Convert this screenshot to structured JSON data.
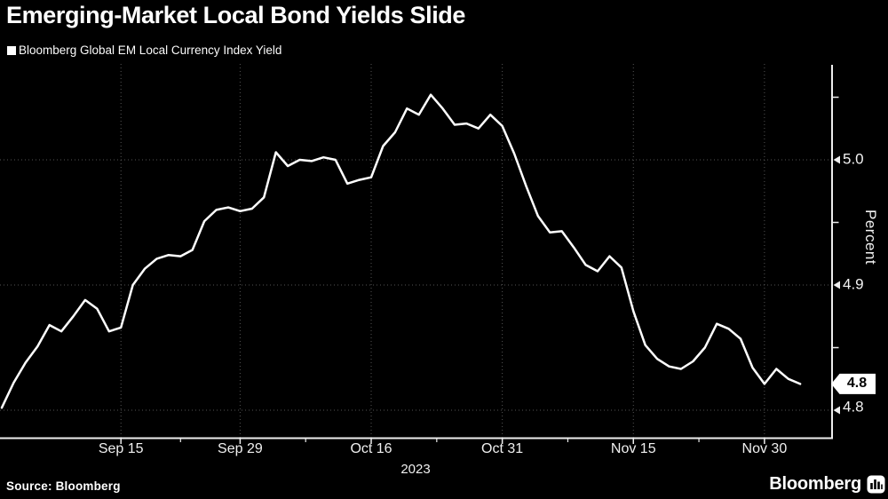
{
  "title": "Emerging-Market Local Bond Yields Slide",
  "legend": {
    "label": "Bloomberg Global EM Local Currency Index Yield",
    "swatch_color": "#ffffff"
  },
  "source": "Source: Bloomberg",
  "brand": {
    "wordmark": "Bloomberg"
  },
  "chart_data": {
    "type": "line",
    "title": "Emerging-Market Local Bond Yields Slide",
    "series": [
      {
        "name": "Bloomberg Global EM Local Currency Index Yield",
        "x": [
          "Sep 1",
          "Sep 4",
          "Sep 5",
          "Sep 6",
          "Sep 7",
          "Sep 8",
          "Sep 11",
          "Sep 12",
          "Sep 13",
          "Sep 14",
          "Sep 15",
          "Sep 18",
          "Sep 19",
          "Sep 20",
          "Sep 21",
          "Sep 22",
          "Sep 25",
          "Sep 26",
          "Sep 27",
          "Sep 28",
          "Sep 29",
          "Oct 2",
          "Oct 3",
          "Oct 4",
          "Oct 5",
          "Oct 6",
          "Oct 9",
          "Oct 10",
          "Oct 11",
          "Oct 12",
          "Oct 13",
          "Oct 16",
          "Oct 17",
          "Oct 18",
          "Oct 19",
          "Oct 20",
          "Oct 23",
          "Oct 24",
          "Oct 25",
          "Oct 26",
          "Oct 27",
          "Oct 30",
          "Oct 31",
          "Nov 1",
          "Nov 2",
          "Nov 3",
          "Nov 6",
          "Nov 7",
          "Nov 8",
          "Nov 9",
          "Nov 10",
          "Nov 13",
          "Nov 14",
          "Nov 15",
          "Nov 16",
          "Nov 17",
          "Nov 20",
          "Nov 21",
          "Nov 22",
          "Nov 23",
          "Nov 24",
          "Nov 27",
          "Nov 28",
          "Nov 29",
          "Nov 30",
          "Dec 1",
          "Dec 4",
          "Dec 5"
        ],
        "values": [
          4.802,
          4.822,
          4.838,
          4.851,
          4.868,
          4.863,
          4.875,
          4.888,
          4.881,
          4.863,
          4.866,
          4.9,
          4.913,
          4.921,
          4.924,
          4.923,
          4.928,
          4.951,
          4.96,
          4.962,
          4.959,
          4.961,
          4.97,
          5.006,
          4.995,
          5.0,
          4.999,
          5.002,
          5.0,
          4.981,
          4.984,
          4.986,
          5.011,
          5.022,
          5.041,
          5.036,
          5.052,
          5.041,
          5.028,
          5.029,
          5.025,
          5.036,
          5.027,
          5.005,
          4.979,
          4.955,
          4.942,
          4.943,
          4.93,
          4.916,
          4.911,
          4.923,
          4.914,
          4.879,
          4.852,
          4.841,
          4.835,
          4.833,
          4.839,
          4.85,
          4.869,
          4.865,
          4.857,
          4.834,
          4.821,
          4.833,
          4.825,
          4.821
        ]
      }
    ],
    "xlabel": "2023",
    "ylabel": "Percent",
    "x_tick_labels": [
      "Sep 15",
      "Sep 29",
      "Oct 16",
      "Oct 31",
      "Nov 15",
      "Nov 30"
    ],
    "x_tick_indices": [
      10,
      20,
      31,
      42,
      53,
      64
    ],
    "y_ticks_labeled": [
      "5.0",
      "4.9",
      "4.8"
    ],
    "y_tick_values": [
      5.0,
      4.9,
      4.8
    ],
    "y_minor_tick_values": [
      5.05,
      4.95,
      4.85
    ],
    "ylim": [
      4.778,
      5.077
    ],
    "grid": "dotted",
    "legend_position": "top-left",
    "last_value_label": "4.8",
    "last_value": 4.821,
    "colors": {
      "line": "#ffffff",
      "grid": "#555555",
      "axis": "#ededed",
      "background": "#000000",
      "tag_bg": "#ffffff",
      "tag_text": "#000000"
    }
  }
}
